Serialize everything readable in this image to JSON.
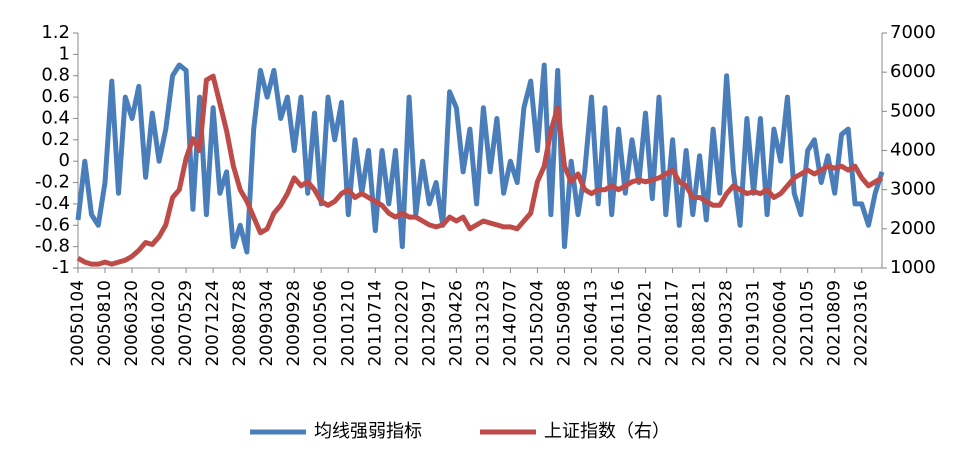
{
  "chart_data": {
    "type": "line",
    "categories": [
      "20050104",
      null,
      null,
      null,
      "20050810",
      null,
      null,
      null,
      "20060320",
      null,
      null,
      null,
      "20061020",
      null,
      null,
      null,
      "20070529",
      null,
      null,
      null,
      "20071224",
      null,
      null,
      null,
      "20080728",
      null,
      null,
      null,
      "20090304",
      null,
      null,
      null,
      "20090928",
      null,
      null,
      null,
      "20100506",
      null,
      null,
      null,
      "20101210",
      null,
      null,
      null,
      "20110714",
      null,
      null,
      null,
      "20120220",
      null,
      null,
      null,
      "20120917",
      null,
      null,
      null,
      "20130426",
      null,
      null,
      null,
      "20131203",
      null,
      null,
      null,
      "20140707",
      null,
      null,
      null,
      "20150204",
      null,
      null,
      null,
      "20150908",
      null,
      null,
      null,
      "20160413",
      null,
      null,
      null,
      "20161116",
      null,
      null,
      null,
      "20170621",
      null,
      null,
      null,
      "20180117",
      null,
      null,
      null,
      "20180821",
      null,
      null,
      null,
      "20190328",
      null,
      null,
      null,
      "20191031",
      null,
      null,
      null,
      "20200604",
      null,
      null,
      null,
      "20210105",
      null,
      null,
      null,
      "20210809",
      null,
      null,
      null,
      "20220316",
      null,
      null,
      null
    ],
    "series": [
      {
        "name": "均线强弱指标",
        "color": "#4a7ebb",
        "values": [
          -0.55,
          0.0,
          -0.5,
          -0.6,
          -0.2,
          0.75,
          -0.3,
          0.6,
          0.4,
          0.7,
          -0.15,
          0.45,
          0.0,
          0.3,
          0.8,
          0.9,
          0.85,
          -0.45,
          0.6,
          -0.5,
          0.5,
          -0.3,
          -0.1,
          -0.8,
          -0.6,
          -0.85,
          0.3,
          0.85,
          0.6,
          0.85,
          0.4,
          0.6,
          0.1,
          0.6,
          -0.3,
          0.45,
          -0.4,
          0.6,
          0.2,
          0.55,
          -0.5,
          0.2,
          -0.3,
          0.1,
          -0.65,
          0.1,
          -0.4,
          0.1,
          -0.8,
          0.6,
          -0.5,
          0.0,
          -0.4,
          -0.2,
          -0.6,
          0.65,
          0.5,
          -0.1,
          0.3,
          -0.4,
          0.5,
          -0.1,
          0.4,
          -0.3,
          0.0,
          -0.2,
          0.5,
          0.75,
          0.1,
          0.9,
          -0.5,
          0.85,
          -0.8,
          0.0,
          -0.5,
          -0.1,
          0.6,
          -0.4,
          0.5,
          -0.5,
          0.3,
          -0.3,
          0.2,
          -0.2,
          0.45,
          -0.35,
          0.6,
          -0.5,
          0.2,
          -0.6,
          0.1,
          -0.5,
          0.05,
          -0.55,
          0.3,
          -0.3,
          0.8,
          -0.1,
          -0.6,
          0.4,
          -0.3,
          0.4,
          -0.5,
          0.3,
          0.0,
          0.6,
          -0.3,
          -0.5,
          0.1,
          0.2,
          -0.2,
          0.05,
          -0.3,
          0.25,
          0.3,
          -0.4,
          -0.4,
          -0.6,
          -0.3,
          -0.1
        ]
      },
      {
        "name": "上证指数（右）",
        "color": "#be4b48",
        "axis": "y2",
        "values": [
          1250,
          1150,
          1100,
          1100,
          1150,
          1100,
          1150,
          1200,
          1300,
          1450,
          1650,
          1600,
          1800,
          2100,
          2800,
          3000,
          3800,
          4300,
          4000,
          5800,
          5900,
          5200,
          4500,
          3600,
          3000,
          2700,
          2300,
          1900,
          2000,
          2400,
          2600,
          2900,
          3300,
          3100,
          3200,
          3000,
          2700,
          2600,
          2700,
          2900,
          3000,
          2800,
          2900,
          2800,
          2700,
          2600,
          2400,
          2300,
          2400,
          2300,
          2300,
          2200,
          2100,
          2050,
          2100,
          2300,
          2200,
          2300,
          2000,
          2100,
          2200,
          2150,
          2100,
          2050,
          2050,
          2000,
          2200,
          2400,
          3200,
          3600,
          4500,
          5100,
          3600,
          3200,
          3400,
          3000,
          2900,
          3000,
          3000,
          3100,
          3000,
          3100,
          3200,
          3250,
          3200,
          3250,
          3300,
          3400,
          3500,
          3200,
          3100,
          2800,
          2800,
          2700,
          2600,
          2600,
          2900,
          3100,
          3000,
          2900,
          2950,
          2900,
          3000,
          2800,
          2900,
          3100,
          3300,
          3400,
          3500,
          3400,
          3500,
          3600,
          3550,
          3600,
          3500,
          3600,
          3300,
          3100,
          3200,
          3300
        ]
      }
    ],
    "ylim": [
      -1,
      1.2
    ],
    "yticks": [
      -1,
      -0.8,
      -0.6,
      -0.4,
      -0.2,
      0,
      0.2,
      0.4,
      0.6,
      0.8,
      1,
      1.2
    ],
    "y2lim": [
      1000,
      7000
    ],
    "y2ticks": [
      1000,
      2000,
      3000,
      4000,
      5000,
      6000,
      7000
    ],
    "legend": "bottom"
  }
}
